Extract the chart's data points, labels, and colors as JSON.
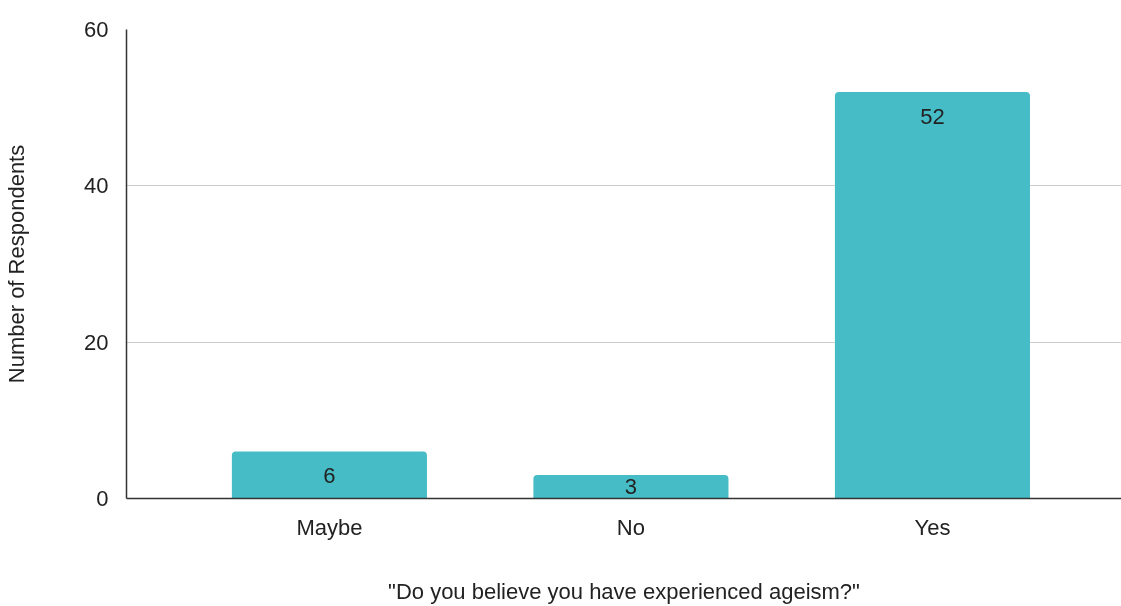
{
  "chart_data": {
    "type": "bar",
    "categories": [
      "Maybe",
      "No",
      "Yes"
    ],
    "values": [
      6,
      3,
      52
    ],
    "color": "#46bdc6",
    "xlabel": "\"Do you believe you have experienced ageism?\"",
    "ylabel": "Number of Respondents",
    "ylim": [
      0,
      60
    ],
    "yticks": [
      0,
      20,
      40,
      60
    ],
    "grid": "y",
    "data_labels": true
  }
}
